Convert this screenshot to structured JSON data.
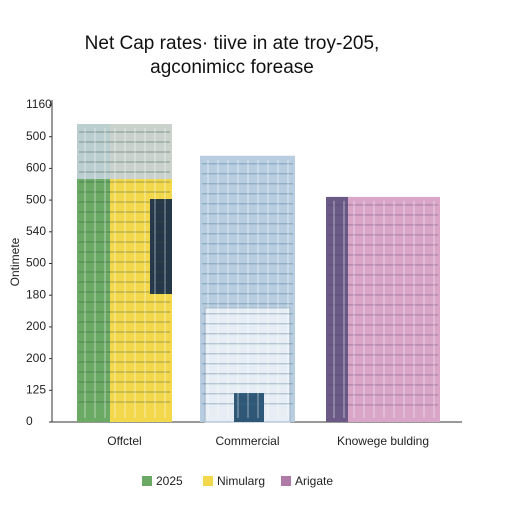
{
  "chart_data": {
    "type": "bar",
    "title": "Net Cap rates· tiive in ate troy-205,",
    "subtitle": "agconimicc forease",
    "y_label": "Ontimete",
    "categories": [
      "Offctel",
      "Commercial",
      "Knowege bulding"
    ],
    "values": [
      9.4,
      8.4,
      7.1
    ],
    "colors": [
      "#f2d84a",
      "#b8cde0",
      "#d9a6c8"
    ],
    "ylim": [
      0,
      10
    ],
    "yticks": [
      {
        "value": 0,
        "label": "0"
      },
      {
        "value": 1,
        "label": "125"
      },
      {
        "value": 2,
        "label": "200"
      },
      {
        "value": 3,
        "label": "200"
      },
      {
        "value": 4,
        "label": "180"
      },
      {
        "value": 5,
        "label": "500"
      },
      {
        "value": 6,
        "label": "540"
      },
      {
        "value": 7,
        "label": "500"
      },
      {
        "value": 8,
        "label": "600"
      },
      {
        "value": 9,
        "label": "500"
      },
      {
        "value": 10,
        "label": "1160"
      }
    ],
    "legend": [
      {
        "name": "2025",
        "color": "#6aaa64"
      },
      {
        "name": "Nimularg",
        "color": "#f2d84a"
      },
      {
        "name": "Arigate",
        "color": "#b07aa6"
      }
    ]
  }
}
